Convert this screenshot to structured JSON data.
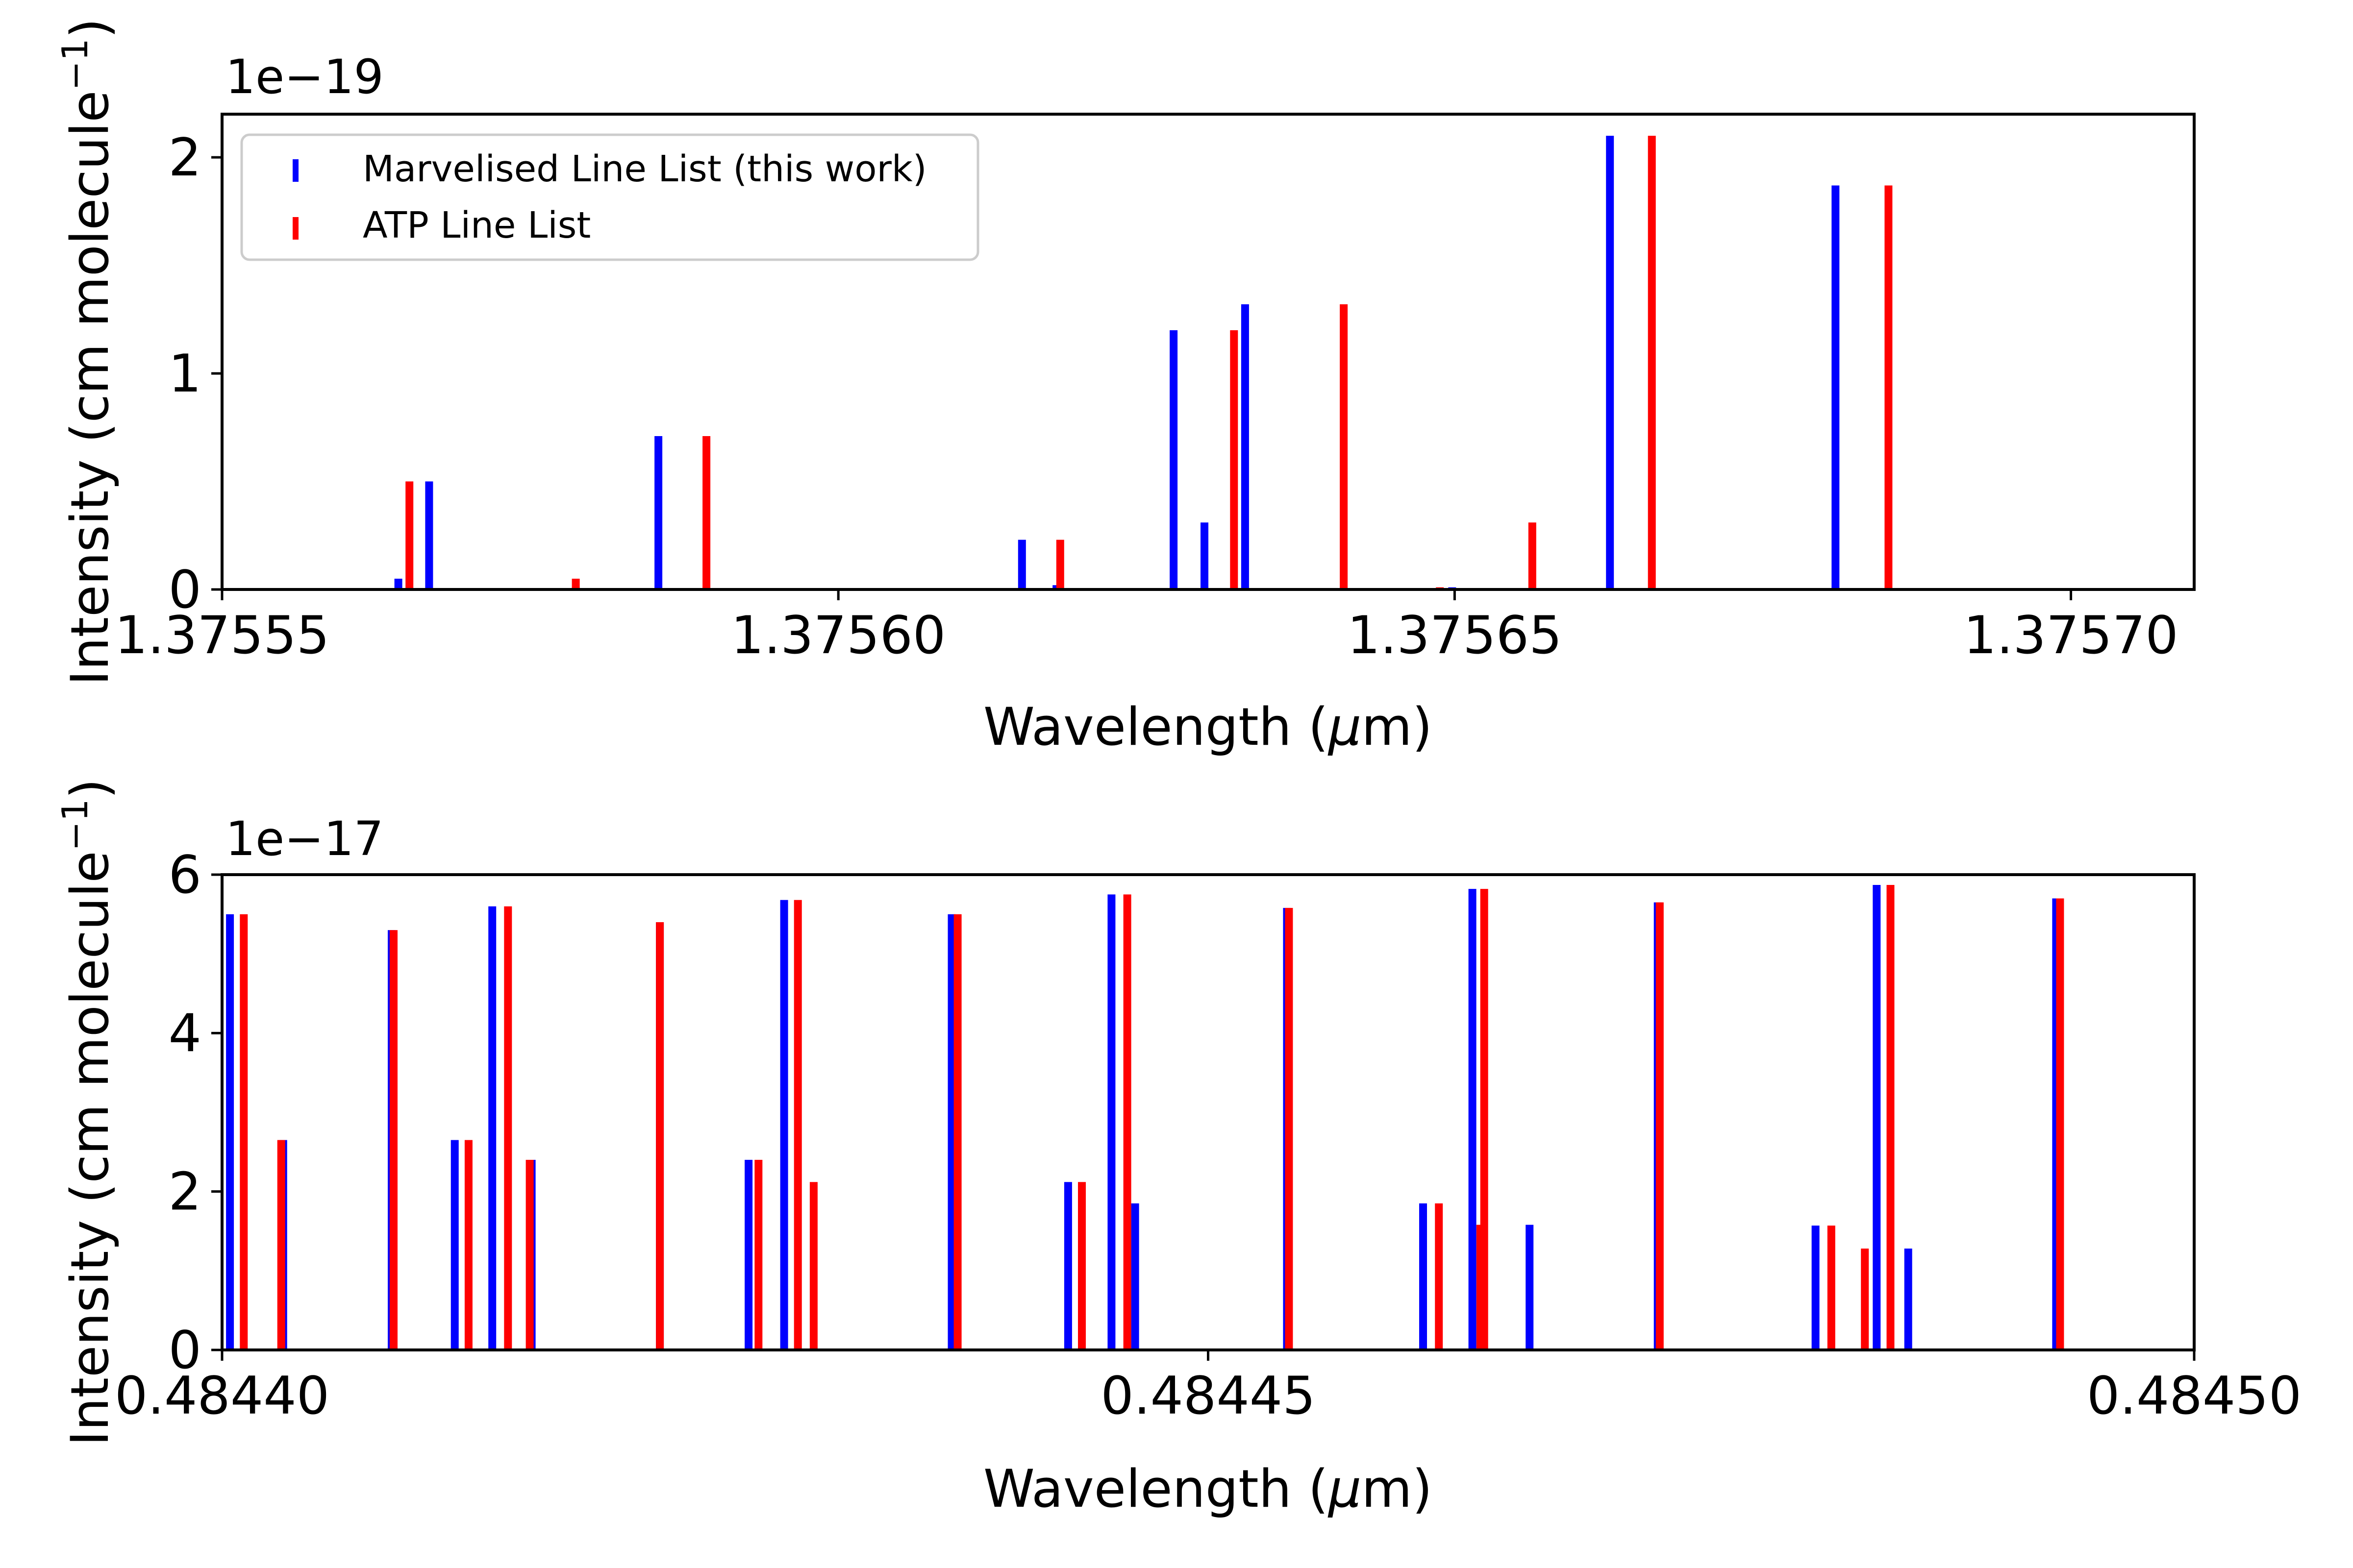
{
  "colors": {
    "series_1": "#0000ff",
    "series_2": "#ff0000",
    "axes": "#000000",
    "background": "#ffffff"
  },
  "chart_data": [
    {
      "type": "bar",
      "xlabel_pre": "Wavelength (",
      "xlabel_mu": "μ",
      "xlabel_post": "m)",
      "ylabel_pre": "Intensity (cm molecule",
      "ylabel_sup": "−1",
      "ylabel_post": ")",
      "offset_label": "1e−19",
      "xlim": [
        1.37555,
        1.37571
      ],
      "ylim": [
        0,
        2.2
      ],
      "xticks": [
        1.37555,
        1.3756,
        1.37565,
        1.3757
      ],
      "xtick_labels": [
        "1.37555",
        "1.37560",
        "1.37565",
        "1.37570"
      ],
      "yticks": [
        0,
        1,
        2
      ],
      "ytick_labels": [
        "0",
        "1",
        "2"
      ],
      "grid": false,
      "legend": {
        "placement": "top-left"
      },
      "series": [
        {
          "name": "Marvelised Line List (this work)",
          "x": [
            1.3755643,
            1.3755668,
            1.3755787,
            1.3755854,
            1.3756002,
            1.3756149,
            1.3756177,
            1.3756272,
            1.3756297,
            1.375633,
            1.3756498,
            1.3756626,
            1.3756809
          ],
          "y": [
            0.05,
            0.5,
            0.01,
            0.71,
            0.004,
            0.23,
            0.02,
            1.2,
            0.31,
            1.32,
            0.01,
            2.1,
            1.87
          ]
        },
        {
          "name": "ATP Line List",
          "x": [
            1.3755652,
            1.3755787,
            1.3755893,
            1.3756018,
            1.375618,
            1.3756321,
            1.375641,
            1.3756488,
            1.3756563,
            1.375666,
            1.3756852
          ],
          "y": [
            0.5,
            0.05,
            0.71,
            0.004,
            0.23,
            1.2,
            1.32,
            0.01,
            0.31,
            2.1,
            1.87
          ]
        }
      ]
    },
    {
      "type": "bar",
      "xlabel_pre": "Wavelength (",
      "xlabel_mu": "μ",
      "xlabel_post": "m)",
      "ylabel_pre": "Intensity (cm molecule",
      "ylabel_sup": "−1",
      "ylabel_post": ")",
      "offset_label": "1e−17",
      "xlim": [
        0.4844,
        0.4845
      ],
      "ylim": [
        0,
        6
      ],
      "xticks": [
        0.4844,
        0.48445,
        0.4845
      ],
      "xtick_labels": [
        "0.48440",
        "0.48445",
        "0.48450"
      ],
      "yticks": [
        0,
        2,
        4,
        6
      ],
      "ytick_labels": [
        "0",
        "2",
        "4",
        "6"
      ],
      "grid": false,
      "series": [
        {
          "name": "Marvelised Line List",
          "x": [
            0.4844004,
            0.4844031,
            0.4844086,
            0.4844118,
            0.4844137,
            0.4844157,
            0.4844222,
            0.4844267,
            0.4844285,
            0.484437,
            0.4844429,
            0.4844451,
            0.4844463,
            0.484454,
            0.4844609,
            0.4844634,
            0.4844663,
            0.4844728,
            0.4844808,
            0.4844839,
            0.4844855,
            0.484493
          ],
          "y": [
            5.5,
            2.65,
            5.3,
            2.65,
            5.6,
            2.4,
            5.4,
            2.4,
            5.68,
            5.5,
            2.12,
            5.75,
            1.85,
            5.58,
            1.85,
            5.82,
            1.58,
            5.65,
            1.57,
            5.87,
            1.28,
            5.7
          ]
        },
        {
          "name": "ATP Line List",
          "x": [
            0.4844011,
            0.484403,
            0.4844087,
            0.4844125,
            0.4844145,
            0.4844156,
            0.4844222,
            0.4844272,
            0.4844292,
            0.48443,
            0.4844373,
            0.4844436,
            0.4844459,
            0.4844541,
            0.4844617,
            0.4844638,
            0.484464,
            0.4844729,
            0.4844816,
            0.4844833,
            0.4844846,
            0.4844932
          ],
          "y": [
            5.5,
            2.65,
            5.3,
            2.65,
            5.6,
            2.4,
            5.4,
            2.4,
            5.68,
            2.12,
            5.5,
            2.12,
            5.75,
            5.58,
            1.85,
            1.58,
            5.82,
            5.65,
            1.57,
            1.28,
            5.87,
            5.7
          ]
        }
      ]
    }
  ]
}
